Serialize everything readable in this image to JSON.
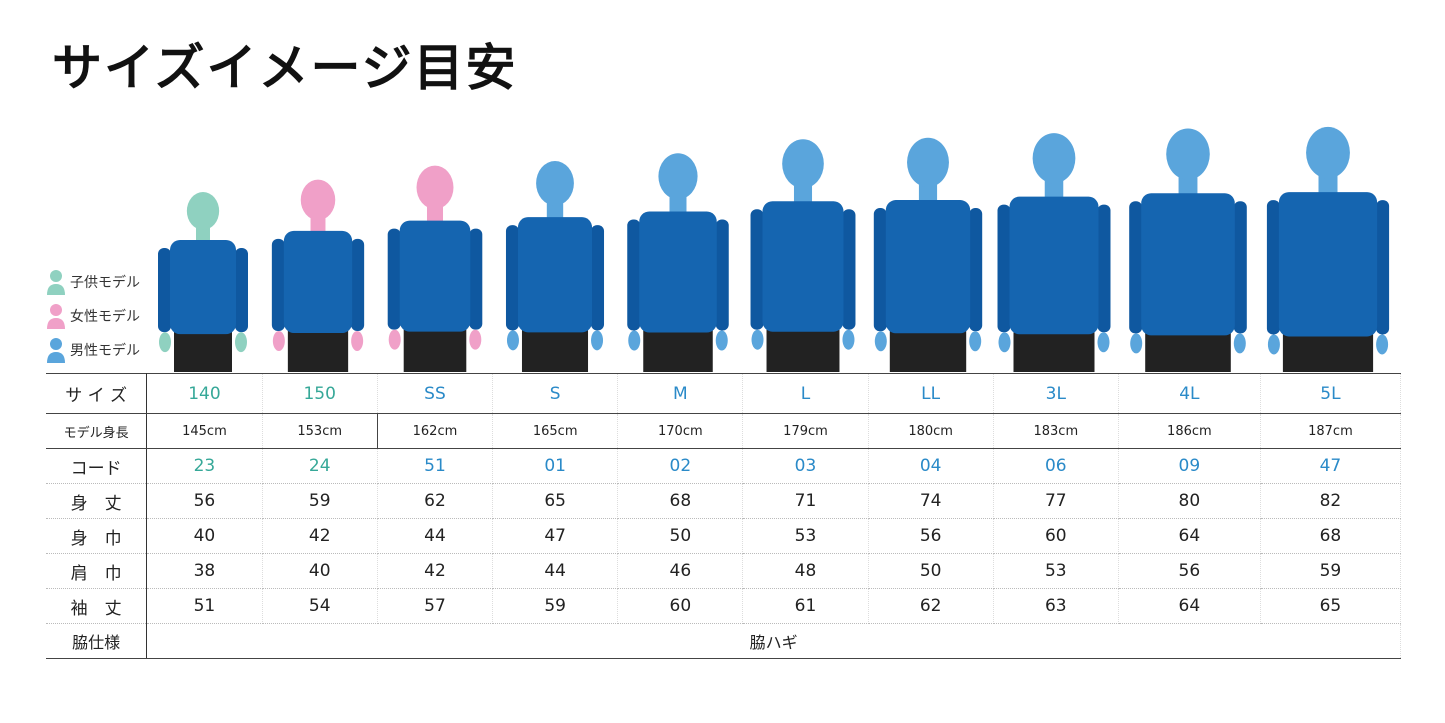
{
  "title": "サイズイメージ目安",
  "legend": [
    {
      "label": "子供モデル",
      "color": "#8fd1c0"
    },
    {
      "label": "女性モデル",
      "color": "#f0a0c8"
    },
    {
      "label": "男性モデル",
      "color": "#5aa5dc"
    }
  ],
  "colors": {
    "shirt": "#1565b0",
    "shorts": "#222222",
    "kid_text": "#36a898",
    "adult_text": "#2a8ac8"
  },
  "columns": [
    {
      "size": "140",
      "model_height": "145cm",
      "model": "kid",
      "code": "23",
      "body_length": "56",
      "body_width": "40",
      "shoulder_width": "38",
      "sleeve_length": "51"
    },
    {
      "size": "150",
      "model_height": "153cm",
      "model": "female",
      "code": "24",
      "body_length": "59",
      "body_width": "42",
      "shoulder_width": "40",
      "sleeve_length": "54"
    },
    {
      "size": "SS",
      "model_height": "162cm",
      "model": "female",
      "code": "51",
      "body_length": "62",
      "body_width": "44",
      "shoulder_width": "42",
      "sleeve_length": "57"
    },
    {
      "size": "S",
      "model_height": "165cm",
      "model": "male",
      "code": "01",
      "body_length": "65",
      "body_width": "47",
      "shoulder_width": "44",
      "sleeve_length": "59"
    },
    {
      "size": "M",
      "model_height": "170cm",
      "model": "male",
      "code": "02",
      "body_length": "68",
      "body_width": "50",
      "shoulder_width": "46",
      "sleeve_length": "60"
    },
    {
      "size": "L",
      "model_height": "179cm",
      "model": "male",
      "code": "03",
      "body_length": "71",
      "body_width": "53",
      "shoulder_width": "48",
      "sleeve_length": "61"
    },
    {
      "size": "LL",
      "model_height": "180cm",
      "model": "male",
      "code": "04",
      "body_length": "74",
      "body_width": "56",
      "shoulder_width": "50",
      "sleeve_length": "62"
    },
    {
      "size": "3L",
      "model_height": "183cm",
      "model": "male",
      "code": "06",
      "body_length": "77",
      "body_width": "60",
      "shoulder_width": "53",
      "sleeve_length": "63"
    },
    {
      "size": "4L",
      "model_height": "186cm",
      "model": "male",
      "code": "09",
      "body_length": "80",
      "body_width": "64",
      "shoulder_width": "56",
      "sleeve_length": "64"
    },
    {
      "size": "5L",
      "model_height": "187cm",
      "model": "male",
      "code": "47",
      "body_length": "82",
      "body_width": "68",
      "shoulder_width": "59",
      "sleeve_length": "65"
    }
  ],
  "row_labels": {
    "size": "サ イ ズ",
    "model_height": "モデル身長",
    "code": "コード",
    "body_length": "身　丈",
    "body_width": "身　巾",
    "shoulder_width": "肩　巾",
    "sleeve_length": "袖　丈",
    "side_spec": "脇仕様"
  },
  "side_spec_value": "脇ハギ"
}
